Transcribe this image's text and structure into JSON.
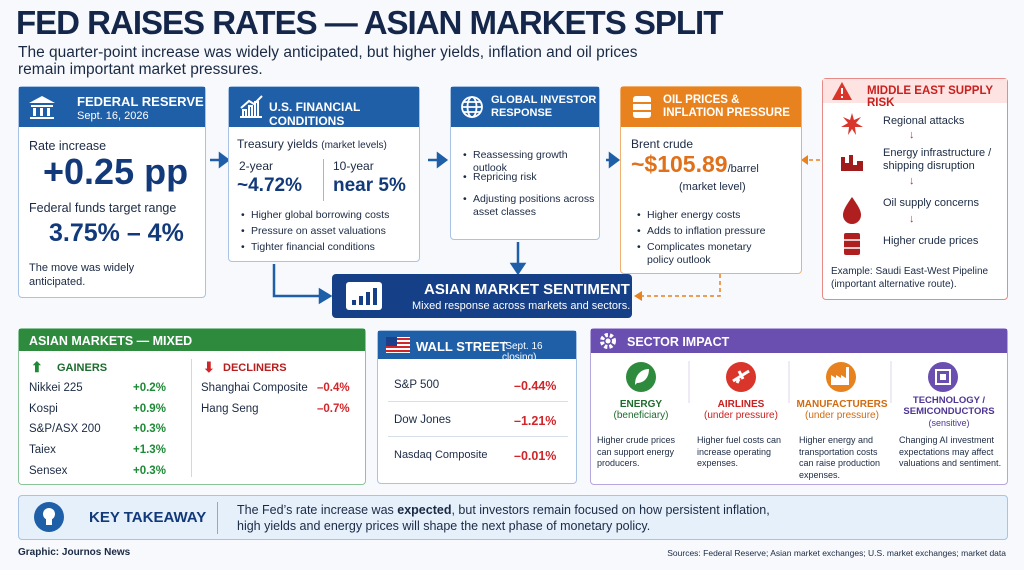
{
  "header": {
    "title": "FED RAISES RATES — ASIAN MARKETS SPLIT",
    "subtitle": "The quarter-point increase was widely anticipated, but higher yields, inflation and oil prices remain important market pressures."
  },
  "federal_reserve": {
    "title": "FEDERAL RESERVE",
    "date": "Sept. 16, 2026",
    "rate_label": "Rate increase",
    "rate_value": "+0.25 pp",
    "range_label": "Federal funds target range",
    "range_value": "3.75% – 4%",
    "note": "The move was widely anticipated."
  },
  "financial_conditions": {
    "title": "U.S. FINANCIAL CONDITIONS",
    "treasury_label": "Treasury yields",
    "treasury_note": "(market levels)",
    "yields": [
      {
        "term": "2-year",
        "value": "~4.72%"
      },
      {
        "term": "10-year",
        "value": "near 5%"
      }
    ],
    "bullets": [
      "Higher global borrowing costs",
      "Pressure on asset valuations",
      "Tighter financial conditions"
    ]
  },
  "global_investor": {
    "title": "GLOBAL INVESTOR RESPONSE",
    "bullets": [
      "Reassessing growth outlook",
      "Repricing risk",
      "Adjusting positions across asset classes"
    ]
  },
  "oil": {
    "title": "OIL PRICES & INFLATION PRESSURE",
    "label": "Brent crude",
    "price": "~$105.89",
    "unit": "/barrel",
    "note": "(market level)",
    "bullets": [
      "Higher energy costs",
      "Adds to inflation pressure",
      "Complicates monetary policy outlook"
    ]
  },
  "middle_east": {
    "title": "MIDDLE EAST SUPPLY RISK",
    "items": [
      "Regional attacks",
      "Energy infrastructure / shipping disruption",
      "Oil supply concerns",
      "Higher crude prices"
    ],
    "example": "Example: Saudi East-West Pipeline (important alternative route)."
  },
  "sentiment": {
    "title": "ASIAN MARKET SENTIMENT",
    "subtitle": "Mixed response across markets and sectors."
  },
  "asian_markets": {
    "title": "ASIAN MARKETS — MIXED",
    "gainers_title": "GAINERS",
    "gainers": [
      {
        "name": "Nikkei 225",
        "change": "+0.2%"
      },
      {
        "name": "Kospi",
        "change": "+0.9%"
      },
      {
        "name": "S&P/ASX 200",
        "change": "+0.3%"
      },
      {
        "name": "Taiex",
        "change": "+1.3%"
      },
      {
        "name": "Sensex",
        "change": "+0.3%"
      }
    ],
    "decliners_title": "DECLINERS",
    "decliners": [
      {
        "name": "Shanghai Composite",
        "change": "–0.4%"
      },
      {
        "name": "Hang Seng",
        "change": "–0.7%"
      }
    ]
  },
  "wall_street": {
    "title": "WALL STREET",
    "date": "(Sept. 16 closing)",
    "rows": [
      {
        "name": "S&P 500",
        "change": "–0.44%"
      },
      {
        "name": "Dow Jones",
        "change": "–1.21%"
      },
      {
        "name": "Nasdaq Composite",
        "change": "–0.01%"
      }
    ]
  },
  "sector_impact": {
    "title": "SECTOR IMPACT",
    "sectors": [
      {
        "name": "ENERGY",
        "status": "(beneficiary)",
        "description": "Higher crude prices can support energy producers."
      },
      {
        "name": "AIRLINES",
        "status": "(under pressure)",
        "description": "Higher fuel costs can increase operating expenses."
      },
      {
        "name": "MANUFACTURERS",
        "status": "(under pressure)",
        "description": "Higher energy and transportation costs can raise production expenses."
      },
      {
        "name": "TECHNOLOGY / SEMICONDUCTORS",
        "status": "(sensitive)",
        "description": "Changing AI investment expectations may affect valuations and sentiment."
      }
    ]
  },
  "key_takeaway": {
    "title": "KEY TAKEAWAY",
    "text_before": "The Fed’s rate increase was ",
    "text_bold": "expected",
    "text_after": ", but investors remain focused on how persistent inflation, high yields and energy prices will shape the next phase of monetary policy."
  },
  "footer": {
    "credit": "Graphic: Journos News",
    "sources": "Sources: Federal Reserve; Asian market exchanges; U.S. market exchanges; market data"
  }
}
